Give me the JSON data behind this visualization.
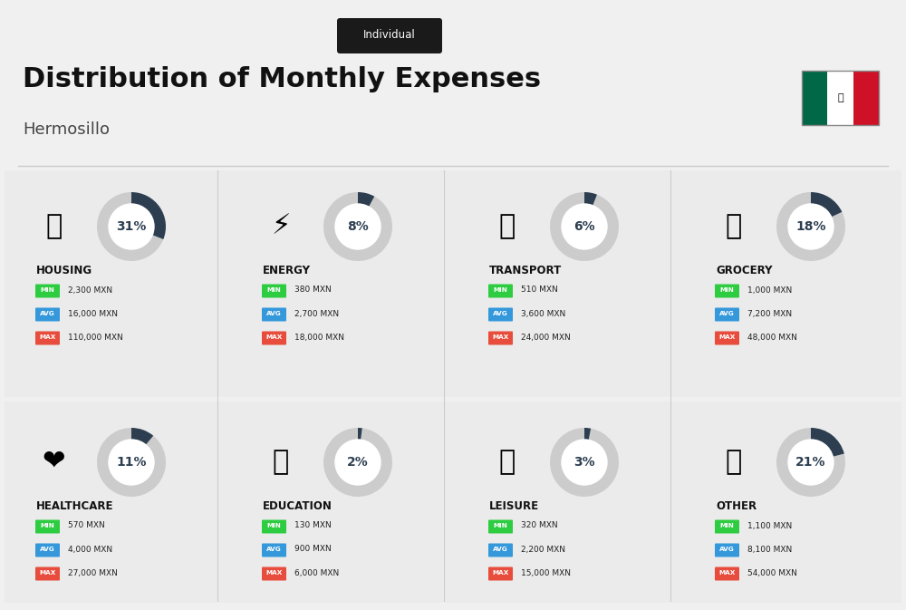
{
  "title": "Distribution of Monthly Expenses",
  "subtitle": "Individual",
  "city": "Hermosillo",
  "bg_color": "#f0f0f0",
  "categories": [
    {
      "name": "HOUSING",
      "pct": 31,
      "min_val": "2,300 MXN",
      "avg_val": "16,000 MXN",
      "max_val": "110,000 MXN",
      "emoji": "🏫",
      "row": 0,
      "col": 0
    },
    {
      "name": "ENERGY",
      "pct": 8,
      "min_val": "380 MXN",
      "avg_val": "2,700 MXN",
      "max_val": "18,000 MXN",
      "emoji": "⚡",
      "row": 0,
      "col": 1
    },
    {
      "name": "TRANSPORT",
      "pct": 6,
      "min_val": "510 MXN",
      "avg_val": "3,600 MXN",
      "max_val": "24,000 MXN",
      "emoji": "🚌",
      "row": 0,
      "col": 2
    },
    {
      "name": "GROCERY",
      "pct": 18,
      "min_val": "1,000 MXN",
      "avg_val": "7,200 MXN",
      "max_val": "48,000 MXN",
      "emoji": "🛍",
      "row": 0,
      "col": 3
    },
    {
      "name": "HEALTHCARE",
      "pct": 11,
      "min_val": "570 MXN",
      "avg_val": "4,000 MXN",
      "max_val": "27,000 MXN",
      "emoji": "❤",
      "row": 1,
      "col": 0
    },
    {
      "name": "EDUCATION",
      "pct": 2,
      "min_val": "130 MXN",
      "avg_val": "900 MXN",
      "max_val": "6,000 MXN",
      "emoji": "🎓",
      "row": 1,
      "col": 1
    },
    {
      "name": "LEISURE",
      "pct": 3,
      "min_val": "320 MXN",
      "avg_val": "2,200 MXN",
      "max_val": "15,000 MXN",
      "emoji": "🛍",
      "row": 1,
      "col": 2
    },
    {
      "name": "OTHER",
      "pct": 21,
      "min_val": "1,100 MXN",
      "avg_val": "8,100 MXN",
      "max_val": "54,000 MXN",
      "emoji": "👜",
      "row": 1,
      "col": 3
    }
  ],
  "min_color": "#2ecc40",
  "avg_color": "#3498db",
  "max_color": "#e74c3c",
  "donut_filled": "#2c3e50",
  "donut_empty": "#cccccc",
  "label_color": "#ffffff",
  "title_color": "#111111",
  "category_color": "#111111"
}
